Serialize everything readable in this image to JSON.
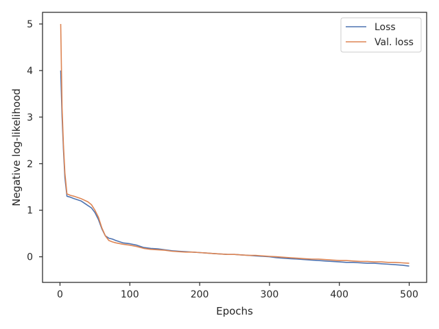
{
  "chart_data": {
    "type": "line",
    "xlabel": "Epochs",
    "ylabel": "Negative log-likelihood",
    "xlim": [
      -25,
      525
    ],
    "ylim": [
      -0.55,
      5.25
    ],
    "xticks": [
      0,
      100,
      200,
      300,
      400,
      500
    ],
    "yticks": [
      0,
      1,
      2,
      3,
      4,
      5
    ],
    "grid": false,
    "legend_position": "top-right",
    "series": [
      {
        "name": "Loss",
        "color": "#4c72b0",
        "x": [
          1,
          3,
          5,
          7,
          10,
          15,
          20,
          30,
          40,
          45,
          50,
          55,
          60,
          65,
          70,
          75,
          80,
          90,
          100,
          110,
          120,
          130,
          140,
          150,
          160,
          170,
          180,
          190,
          200,
          210,
          220,
          230,
          240,
          250,
          260,
          270,
          280,
          290,
          300,
          310,
          320,
          330,
          340,
          350,
          360,
          370,
          380,
          390,
          400,
          410,
          420,
          430,
          440,
          450,
          460,
          470,
          480,
          490,
          500
        ],
        "y": [
          4.0,
          3.0,
          2.3,
          1.7,
          1.3,
          1.28,
          1.25,
          1.2,
          1.1,
          1.05,
          0.95,
          0.8,
          0.6,
          0.45,
          0.4,
          0.38,
          0.35,
          0.3,
          0.28,
          0.25,
          0.2,
          0.18,
          0.17,
          0.15,
          0.13,
          0.12,
          0.11,
          0.1,
          0.09,
          0.08,
          0.07,
          0.06,
          0.05,
          0.05,
          0.04,
          0.03,
          0.02,
          0.01,
          0.0,
          -0.02,
          -0.03,
          -0.04,
          -0.05,
          -0.06,
          -0.07,
          -0.08,
          -0.09,
          -0.1,
          -0.11,
          -0.12,
          -0.12,
          -0.13,
          -0.14,
          -0.14,
          -0.15,
          -0.16,
          -0.17,
          -0.18,
          -0.2
        ]
      },
      {
        "name": "Val. loss",
        "color": "#dd8452",
        "x": [
          1,
          3,
          5,
          7,
          10,
          15,
          20,
          30,
          40,
          45,
          50,
          55,
          60,
          65,
          70,
          75,
          80,
          90,
          100,
          110,
          120,
          130,
          140,
          150,
          160,
          170,
          180,
          190,
          200,
          210,
          220,
          230,
          240,
          250,
          260,
          270,
          280,
          290,
          300,
          310,
          320,
          330,
          340,
          350,
          360,
          370,
          380,
          390,
          400,
          410,
          420,
          430,
          440,
          450,
          460,
          470,
          480,
          490,
          500
        ],
        "y": [
          5.0,
          3.2,
          2.4,
          1.8,
          1.35,
          1.32,
          1.3,
          1.25,
          1.18,
          1.12,
          1.0,
          0.85,
          0.62,
          0.45,
          0.35,
          0.32,
          0.3,
          0.27,
          0.25,
          0.22,
          0.18,
          0.16,
          0.15,
          0.14,
          0.12,
          0.11,
          0.1,
          0.1,
          0.09,
          0.08,
          0.07,
          0.06,
          0.05,
          0.05,
          0.04,
          0.03,
          0.03,
          0.02,
          0.01,
          0.0,
          -0.01,
          -0.02,
          -0.03,
          -0.04,
          -0.05,
          -0.05,
          -0.06,
          -0.07,
          -0.08,
          -0.08,
          -0.09,
          -0.1,
          -0.1,
          -0.11,
          -0.11,
          -0.12,
          -0.12,
          -0.13,
          -0.14
        ]
      }
    ]
  }
}
